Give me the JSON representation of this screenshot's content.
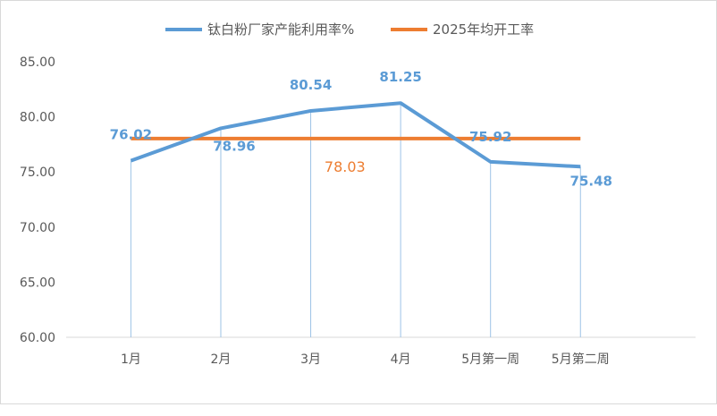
{
  "chart_data": {
    "type": "line",
    "categories": [
      "1月",
      "2月",
      "3月",
      "4月",
      "5月第一周",
      "5月第二周"
    ],
    "series": [
      {
        "name": "钛白粉厂家产能利用率%",
        "color": "#5b9bd5",
        "values": [
          76.02,
          78.96,
          80.54,
          81.25,
          75.92,
          75.48
        ],
        "labels": [
          "76.02",
          "78.96",
          "80.54",
          "81.25",
          "75.92",
          "75.48"
        ]
      },
      {
        "name": "2025年均开工率",
        "color": "#ed7d31",
        "values": [
          78.03,
          78.03,
          78.03,
          78.03,
          78.03,
          78.03
        ],
        "label": "78.03"
      }
    ],
    "yticks": [
      "60.00",
      "65.00",
      "70.00",
      "75.00",
      "80.00",
      "85.00"
    ],
    "ylim": [
      60,
      85
    ],
    "legend_position": "top",
    "grid": false
  }
}
